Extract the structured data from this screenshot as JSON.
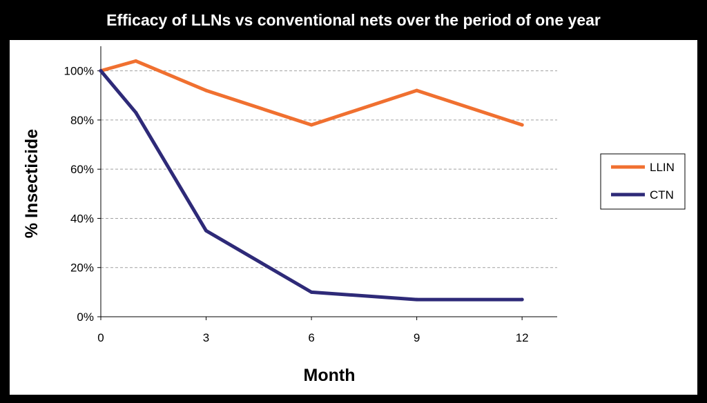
{
  "chart_data": {
    "type": "line",
    "title": "Efficacy of LLNs vs conventional nets over the period of one year",
    "xlabel": "Month",
    "ylabel": "% Insecticide",
    "x_ticks": [
      0,
      3,
      6,
      9,
      12
    ],
    "y_ticks": [
      "0%",
      "20%",
      "40%",
      "60%",
      "80%",
      "100%"
    ],
    "xlim": [
      0,
      13
    ],
    "ylim": [
      0,
      110
    ],
    "grid": "horizontal dashed",
    "legend_position": "right",
    "series": [
      {
        "name": "LLIN",
        "color": "#f07030",
        "x": [
          0,
          1,
          3,
          6,
          9,
          12
        ],
        "values": [
          100,
          104,
          92,
          78,
          92,
          78
        ]
      },
      {
        "name": "CTN",
        "color": "#2e2a78",
        "x": [
          0,
          1,
          3,
          6,
          9,
          12
        ],
        "values": [
          100,
          83,
          35,
          10,
          7,
          7
        ]
      }
    ]
  },
  "colors": {
    "background": "#000000",
    "plot_background": "#ffffff",
    "title_text": "#ffffff",
    "gridline": "#a0a0a0"
  }
}
